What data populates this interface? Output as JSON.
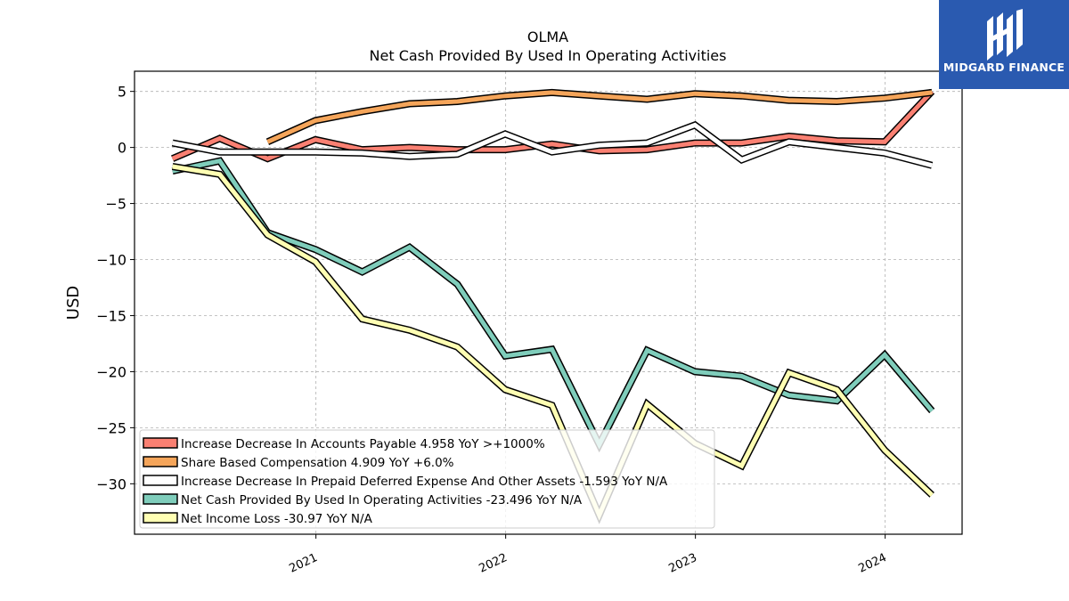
{
  "chart_data": {
    "type": "line",
    "title": "OLMA",
    "subtitle": "Net Cash Provided By Used In Operating Activities",
    "xlabel": "",
    "ylabel": "USD",
    "x_ticks": [
      "2021",
      "2022",
      "2023",
      "2024"
    ],
    "y_ticks": [
      "5",
      "0",
      "−5",
      "−10",
      "−15",
      "−20",
      "−25",
      "−30"
    ],
    "ylim": [
      -34.5,
      6.8
    ],
    "grid": true,
    "legend_position": "lower-left",
    "series": [
      {
        "name": "Increase Decrease In Accounts Payable",
        "legend": "Increase Decrease In Accounts Payable  4.958 YoY >+1000%",
        "color": "#fa8072",
        "x": [
          "2020-03-31",
          "2020-06-30",
          "2020-09-30",
          "2020-12-31",
          "2021-03-31",
          "2021-06-30",
          "2021-09-30",
          "2021-12-31",
          "2022-03-31",
          "2022-06-30",
          "2022-09-30",
          "2022-12-31",
          "2023-03-31",
          "2023-06-30",
          "2023-09-30",
          "2023-12-31",
          "2024-03-31"
        ],
        "values": [
          -1.0,
          0.8,
          -1.0,
          0.7,
          -0.2,
          0.0,
          -0.2,
          -0.2,
          0.3,
          -0.3,
          -0.2,
          0.4,
          0.4,
          1.0,
          0.6,
          0.5,
          5.0
        ]
      },
      {
        "name": "Share Based Compensation",
        "legend": "Share Based Compensation  4.909 YoY +6.0%",
        "color": "#f5a55a",
        "x": [
          "2020-09-30",
          "2020-12-31",
          "2021-03-31",
          "2021-06-30",
          "2021-09-30",
          "2021-12-31",
          "2022-03-31",
          "2022-06-30",
          "2022-09-30",
          "2022-12-31",
          "2023-03-31",
          "2023-06-30",
          "2023-09-30",
          "2023-12-31",
          "2024-03-31"
        ],
        "values": [
          0.5,
          2.4,
          3.2,
          3.9,
          4.1,
          4.6,
          4.9,
          4.6,
          4.3,
          4.8,
          4.6,
          4.2,
          4.1,
          4.4,
          4.9
        ]
      },
      {
        "name": "Increase Decrease In Prepaid Deferred Expense And Other Assets",
        "legend": "Increase Decrease In Prepaid Deferred Expense And Other Assets  -1.593 YoY N/A",
        "color": "#ffffff",
        "x": [
          "2020-03-31",
          "2020-06-30",
          "2020-09-30",
          "2020-12-31",
          "2021-03-31",
          "2021-06-30",
          "2021-09-30",
          "2021-12-31",
          "2022-03-31",
          "2022-06-30",
          "2022-09-30",
          "2022-12-31",
          "2023-03-31",
          "2023-06-30",
          "2023-09-30",
          "2023-12-31",
          "2024-03-31"
        ],
        "values": [
          0.4,
          -0.4,
          -0.4,
          -0.4,
          -0.5,
          -0.8,
          -0.6,
          1.2,
          -0.4,
          0.2,
          0.4,
          2.0,
          -1.1,
          0.5,
          0.0,
          -0.5,
          -1.6
        ]
      },
      {
        "name": "Net Cash Provided By Used In Operating Activities",
        "legend": "Net Cash Provided By Used In Operating Activities  -23.496 YoY N/A",
        "color": "#7fcdbb",
        "x": [
          "2020-03-31",
          "2020-06-30",
          "2020-09-30",
          "2020-12-31",
          "2021-03-31",
          "2021-06-30",
          "2021-09-30",
          "2021-12-31",
          "2022-03-31",
          "2022-06-30",
          "2022-09-30",
          "2022-12-31",
          "2023-03-31",
          "2023-06-30",
          "2023-09-30",
          "2023-12-31",
          "2024-03-31"
        ],
        "values": [
          -2.1,
          -1.2,
          -7.6,
          -9.1,
          -11.1,
          -8.9,
          -12.2,
          -18.6,
          -18.0,
          -26.5,
          -18.1,
          -20.0,
          -20.4,
          -22.1,
          -22.6,
          -18.5,
          -23.5
        ]
      },
      {
        "name": "Net Income Loss",
        "legend": "Net Income Loss  -30.97 YoY N/A",
        "color": "#ffffb3",
        "x": [
          "2020-03-31",
          "2020-06-30",
          "2020-09-30",
          "2020-12-31",
          "2021-03-31",
          "2021-06-30",
          "2021-09-30",
          "2021-12-31",
          "2022-03-31",
          "2022-06-30",
          "2022-09-30",
          "2022-12-31",
          "2023-03-31",
          "2023-06-30",
          "2023-09-30",
          "2023-12-31",
          "2024-03-31"
        ],
        "values": [
          -1.7,
          -2.4,
          -7.8,
          -10.2,
          -15.3,
          -16.3,
          -17.8,
          -21.6,
          -23.0,
          -32.8,
          -22.9,
          -26.4,
          -28.4,
          -20.1,
          -21.6,
          -27.0,
          -31.0
        ]
      }
    ]
  },
  "brand": {
    "name": "MIDGARD FINANCE",
    "background": "#2a5ab0",
    "icon": "midgard-logo-icon"
  }
}
